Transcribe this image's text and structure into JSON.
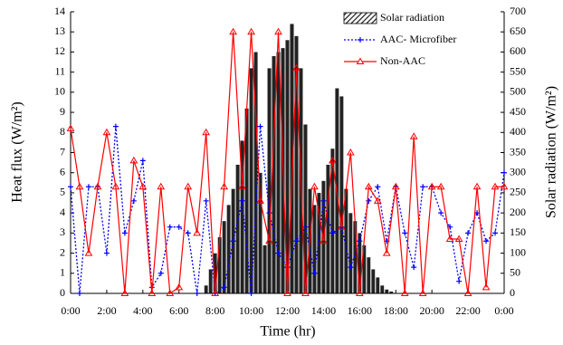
{
  "chart_data": {
    "type": "line",
    "xlabel": "Time (hr)",
    "ylabel": "Heat flux (W/m²)",
    "y2label": "Solar radiation (W/m²)",
    "xlim": [
      0,
      24
    ],
    "xticks": [
      {
        "value": 0,
        "label": "0:00"
      },
      {
        "value": 2,
        "label": "2:00"
      },
      {
        "value": 4,
        "label": "4:00"
      },
      {
        "value": 6,
        "label": "6:00"
      },
      {
        "value": 8,
        "label": "8:00"
      },
      {
        "value": 10,
        "label": "10:00"
      },
      {
        "value": 12,
        "label": "12:00"
      },
      {
        "value": 14,
        "label": "14:00"
      },
      {
        "value": 16,
        "label": "16:00"
      },
      {
        "value": 18,
        "label": "18:00"
      },
      {
        "value": 20,
        "label": "20:00"
      },
      {
        "value": 22,
        "label": "22:00"
      },
      {
        "value": 24,
        "label": "0:00"
      }
    ],
    "ylim": [
      0,
      14
    ],
    "yticks": [
      0,
      1,
      2,
      3,
      4,
      5,
      6,
      7,
      8,
      9,
      10,
      11,
      12,
      13,
      14
    ],
    "y2lim": [
      0,
      700
    ],
    "y2ticks": [
      0,
      50,
      100,
      150,
      200,
      250,
      300,
      350,
      400,
      450,
      500,
      550,
      600,
      650,
      700
    ],
    "legend": "upper right",
    "x": [
      0,
      0.5,
      1,
      1.5,
      2,
      2.5,
      3,
      3.5,
      4,
      4.5,
      5,
      5.5,
      6,
      6.5,
      7,
      7.5,
      8,
      8.5,
      9,
      9.5,
      10,
      10.5,
      11,
      11.5,
      12,
      12.5,
      13,
      13.5,
      14,
      14.5,
      15,
      15.5,
      16,
      16.5,
      17,
      17.5,
      18,
      18.5,
      19,
      19.5,
      20,
      20.5,
      21,
      21.5,
      22,
      22.5,
      23,
      23.5,
      24
    ],
    "series": [
      {
        "name": "Solar radiation",
        "type": "bar",
        "axis": "y2",
        "color": "#222222",
        "x": [
          7.5,
          7.75,
          8,
          8.25,
          8.5,
          8.75,
          9,
          9.25,
          9.5,
          9.75,
          10,
          10.25,
          10.5,
          10.75,
          11,
          11.25,
          11.5,
          11.75,
          12,
          12.25,
          12.5,
          12.75,
          13,
          13.25,
          13.5,
          13.75,
          14,
          14.25,
          14.5,
          14.75,
          15,
          15.25,
          15.5,
          15.75,
          16,
          16.25,
          16.5,
          16.75,
          17,
          17.25,
          17.5,
          17.75
        ],
        "values": [
          20,
          60,
          100,
          140,
          180,
          220,
          260,
          320,
          380,
          460,
          560,
          600,
          300,
          120,
          560,
          590,
          600,
          610,
          630,
          670,
          640,
          560,
          420,
          260,
          220,
          250,
          280,
          320,
          360,
          510,
          490,
          260,
          200,
          180,
          150,
          120,
          90,
          60,
          40,
          20,
          10,
          5
        ]
      },
      {
        "name": "AAC- Microfiber",
        "type": "line",
        "color": "#0000ff",
        "values": [
          5.3,
          0,
          5.3,
          5.3,
          2,
          8.3,
          3,
          4.6,
          6.6,
          0.3,
          1,
          3.3,
          3.3,
          3,
          0,
          4.6,
          0,
          0.3,
          2.6,
          4.6,
          0,
          8.3,
          4,
          2,
          1.3,
          2.6,
          3.3,
          1,
          4.6,
          3,
          3.3,
          1.3,
          2.6,
          4.6,
          5.3,
          2.6,
          5.3,
          3,
          1.3,
          5.3,
          5.3,
          4,
          3.3,
          0.6,
          3,
          4,
          2.6,
          3,
          6
        ]
      },
      {
        "name": "Non-AAC",
        "type": "line",
        "color": "#ff0000",
        "values": [
          8.2,
          5.3,
          2,
          5.3,
          8,
          5.3,
          0,
          6.6,
          5.3,
          0,
          5.3,
          0,
          0.3,
          5.3,
          3,
          8,
          0,
          5.3,
          13,
          5.3,
          13,
          4.6,
          2.6,
          13,
          0,
          11.2,
          0,
          5.3,
          2.6,
          6.6,
          3.3,
          7,
          0,
          5.3,
          4.6,
          2,
          5.3,
          0,
          7.8,
          0,
          5.3,
          5.3,
          2.7,
          2.7,
          0,
          5.3,
          0.3,
          5.3,
          5.3
        ]
      }
    ]
  }
}
